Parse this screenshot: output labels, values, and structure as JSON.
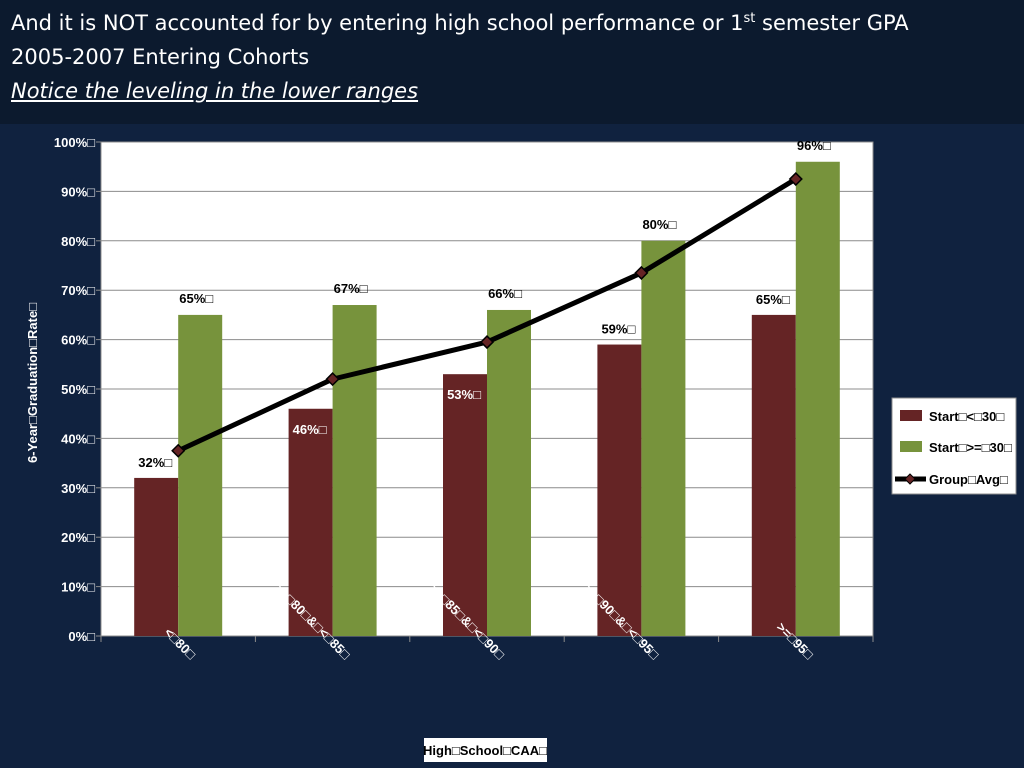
{
  "slide": {
    "title_line1_pre": "And it is NOT accounted for by entering high school performance or 1",
    "title_line1_sup": "st",
    "title_line1_post": " semester GPA",
    "title_line2": "2005-2007 Entering Cohorts",
    "title_line3": "Notice the leveling in the lower ranges"
  },
  "colors": {
    "start_lt_30": "#652425",
    "start_ge_30": "#77933c",
    "group_avg": "#000000",
    "background": "#10223f"
  },
  "chart_data": {
    "type": "bar",
    "xlabel": "High□School□CAA□",
    "ylabel": "6-Year□Graduation□Rate□",
    "ylim": [
      0,
      100
    ],
    "yticks": [
      "0%□",
      "10%□",
      "20%□",
      "30%□",
      "40%□",
      "50%□",
      "60%□",
      "70%□",
      "80%□",
      "90%□",
      "100%□"
    ],
    "grid": true,
    "legend_position": "right",
    "categories": [
      "<□80□",
      ">=□80□&□<□85□",
      ">=□85□&□<□90□",
      ">=□90□&□<□95□",
      ">=□95□"
    ],
    "series": [
      {
        "name": "Start□<□30□",
        "type": "bar",
        "values": [
          32,
          46,
          53,
          59,
          65
        ],
        "labels": [
          "32%□",
          "46%□",
          "53%□",
          "59%□",
          "65%□"
        ]
      },
      {
        "name": "Start□>=□30□",
        "type": "bar",
        "values": [
          65,
          67,
          66,
          80,
          96
        ],
        "labels": [
          "65%□",
          "67%□",
          "66%□",
          "80%□",
          "96%□"
        ]
      },
      {
        "name": "Group□Avg□",
        "type": "line",
        "values": [
          37.5,
          52,
          59.5,
          73.5,
          92.5
        ]
      }
    ]
  }
}
